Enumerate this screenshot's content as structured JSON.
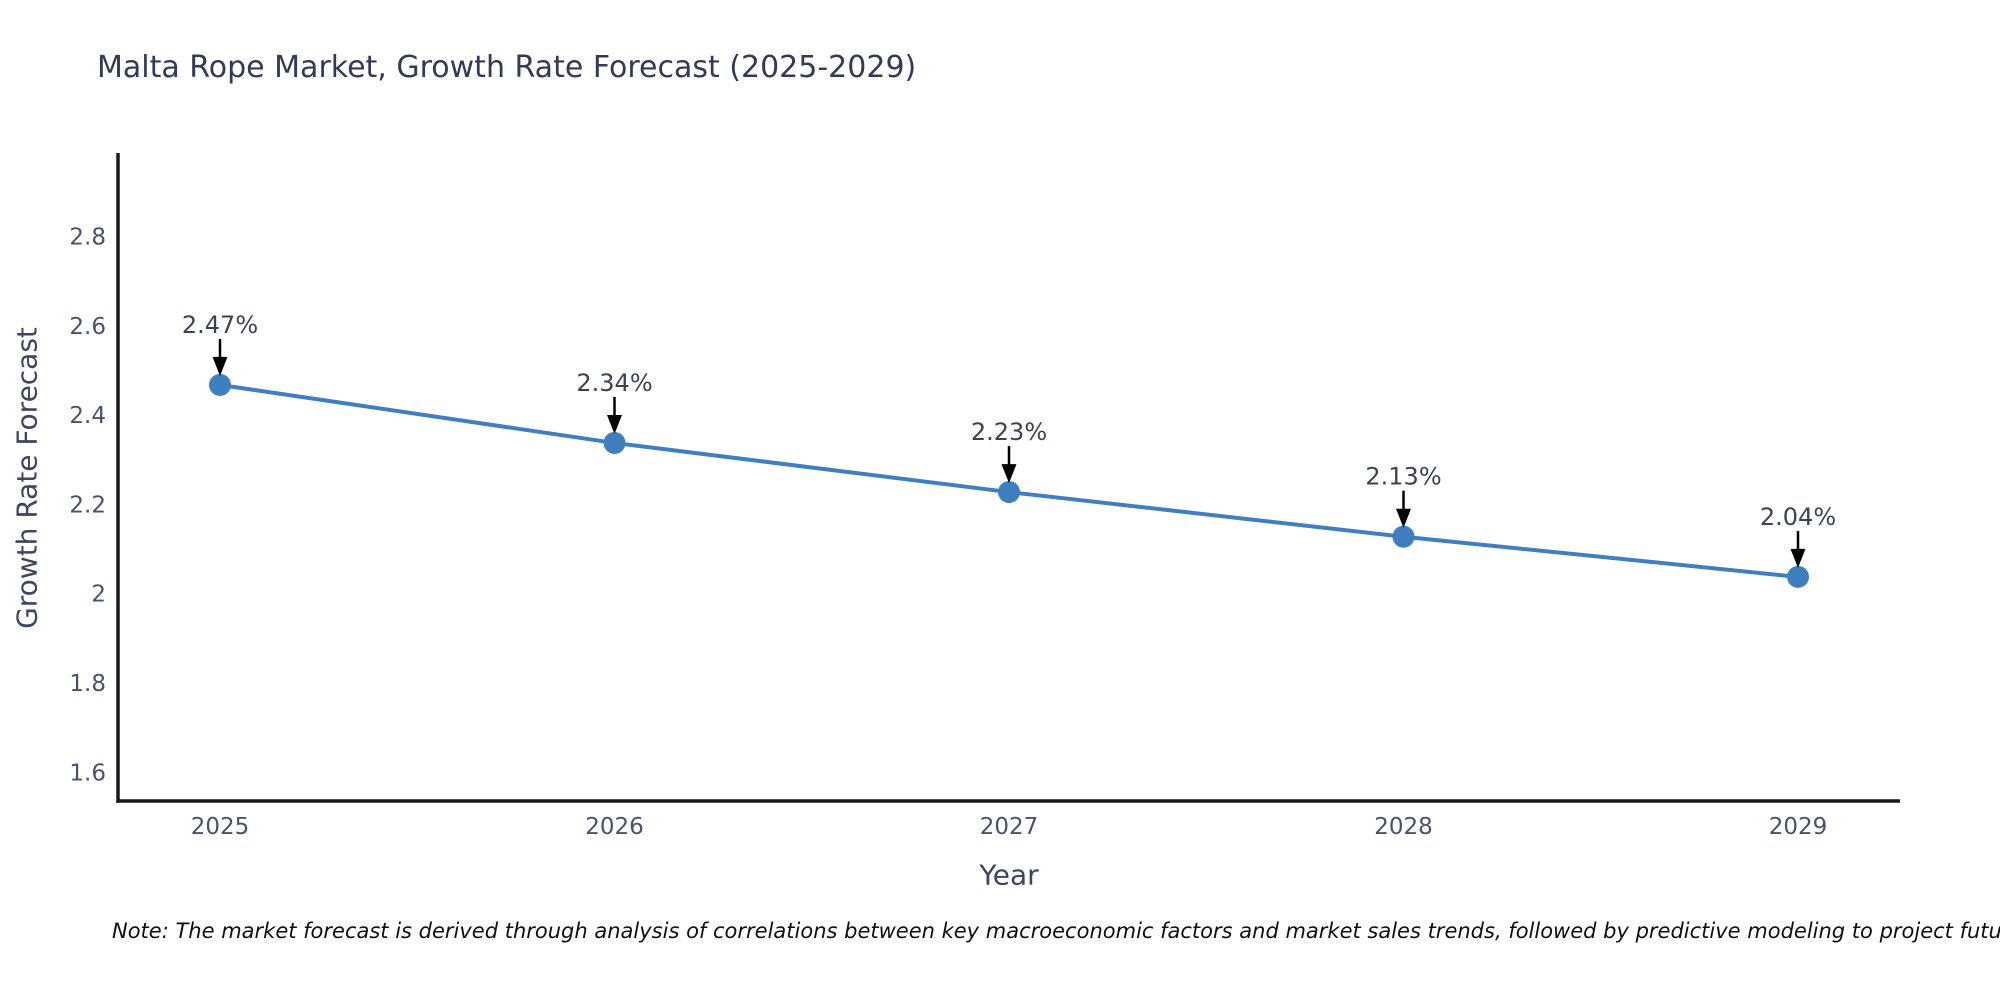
{
  "page": {
    "title": "Malta Rope Market, Growth Rate Forecast (2025-2029)",
    "note": "Note: The market forecast is derived through analysis of correlations between key macroeconomic factors and market sales trends, followed by predictive modeling to project future sales"
  },
  "chart_data": {
    "type": "line",
    "title": "Malta Rope Market, Growth Rate Forecast (2025-2029)",
    "xlabel": "Year",
    "ylabel": "Growth Rate Forecast",
    "x": [
      2025,
      2026,
      2027,
      2028,
      2029
    ],
    "values": [
      2.47,
      2.34,
      2.23,
      2.13,
      2.04
    ],
    "point_labels": [
      "2.47%",
      "2.34%",
      "2.23%",
      "2.13%",
      "2.04%"
    ],
    "x_tick_labels": [
      "2025",
      "2026",
      "2027",
      "2028",
      "2029"
    ],
    "y_ticks": [
      1.6,
      1.8,
      2.0,
      2.2,
      2.4,
      2.6,
      2.8
    ],
    "y_tick_labels": [
      "1.6",
      "1.8",
      "2",
      "2.2",
      "2.4",
      "2.6",
      "2.8"
    ],
    "ylim": [
      1.538,
      2.985
    ],
    "grid": false,
    "legend": "none",
    "annotations": "value labels with down arrows above each point",
    "line_color": "#3f7fbf",
    "marker_color": "#3f7fbf",
    "axis_color": "#1a1a1a",
    "annotation_arrow_color": "#000000"
  }
}
